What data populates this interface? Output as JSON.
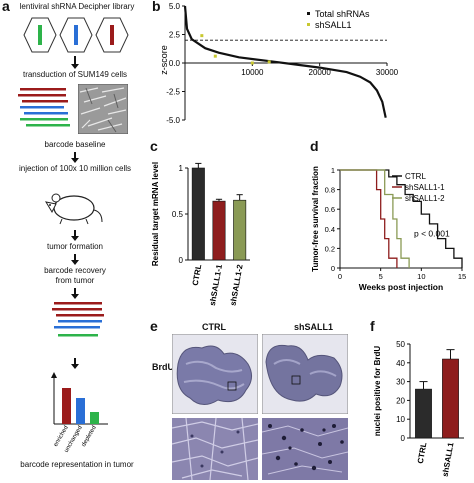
{
  "panel_labels": {
    "a": "a",
    "b": "b",
    "c": "c",
    "d": "d",
    "e": "e",
    "f": "f"
  },
  "panel_a": {
    "steps": [
      "lentiviral shRNA Decipher library",
      "transduction of SUM149 cells",
      "barcode baseline",
      "injection of 100x 10 million cells",
      "tumor formation",
      "barcode recovery",
      "from tumor",
      "barcode representation in tumor"
    ],
    "bar_labels": [
      "enriched",
      "unchanged",
      "depleted"
    ],
    "colors": {
      "green": "#2db34a",
      "blue": "#2a6fd6",
      "red": "#9b1b1b"
    }
  },
  "panel_b": {
    "ylabel": "z-score",
    "legend": [
      "Total shRNAs",
      "shSALL1"
    ]
  },
  "chart_data": [
    {
      "type": "line",
      "panel": "b",
      "ylabel": "z-score",
      "xlim": [
        0,
        30000
      ],
      "ylim": [
        -5.0,
        5.0
      ],
      "x_ticks": [
        10000,
        20000,
        30000
      ],
      "y_ticks": [
        -5.0,
        -2.5,
        0.0,
        2.5,
        5.0
      ],
      "threshold": 2.0,
      "series": [
        {
          "name": "Total shRNAs",
          "x": [
            0,
            300,
            1000,
            3000,
            5000,
            8000,
            12000,
            16000,
            20000,
            24000,
            26000,
            27500,
            28500,
            29300,
            29800
          ],
          "y": [
            5.0,
            3.0,
            2.1,
            1.3,
            0.9,
            0.5,
            0.2,
            -0.1,
            -0.4,
            -0.8,
            -1.2,
            -1.7,
            -2.4,
            -3.4,
            -4.8
          ]
        },
        {
          "name": "shSALL1",
          "x": [
            2500,
            4500,
            10000,
            12500
          ],
          "y": [
            2.4,
            0.6,
            0.0,
            0.1
          ]
        }
      ]
    },
    {
      "type": "bar",
      "panel": "c",
      "ylabel": "Residual target mRNA level",
      "categories": [
        "CTRL",
        "shSALL1-1",
        "shSALL1-2"
      ],
      "values": [
        1.0,
        0.64,
        0.65
      ],
      "errors": [
        0.05,
        0.02,
        0.06
      ],
      "ylim": [
        0,
        1.0
      ],
      "y_ticks": [
        0,
        0.5,
        1.0
      ],
      "colors": [
        "#2b2b2b",
        "#8e1d1d",
        "#8a9a55"
      ]
    },
    {
      "type": "line",
      "panel": "d",
      "xlabel": "Weeks post injection",
      "ylabel": "Tumor-free survival fraction",
      "xlim": [
        0,
        15
      ],
      "ylim": [
        0,
        1.0
      ],
      "x_ticks": [
        0,
        5,
        10,
        15
      ],
      "y_ticks": [
        0,
        0.2,
        0.4,
        0.6,
        0.8,
        1.0
      ],
      "annotation": "p < 0.001",
      "series": [
        {
          "name": "CTRL",
          "color": "#111111",
          "x": [
            0,
            6,
            6,
            7,
            7,
            8,
            8,
            9,
            9,
            10,
            10,
            11,
            11,
            12,
            12,
            13,
            13,
            14,
            14,
            15,
            15
          ],
          "y": [
            1,
            1,
            0.93,
            0.93,
            0.85,
            0.85,
            0.75,
            0.75,
            0.68,
            0.68,
            0.55,
            0.55,
            0.45,
            0.45,
            0.3,
            0.3,
            0.2,
            0.2,
            0.1,
            0.1,
            0
          ]
        },
        {
          "name": "shSALL1-1",
          "color": "#8e1d1d",
          "x": [
            0,
            4.5,
            4.5,
            5,
            5,
            5.5,
            5.5,
            6,
            6,
            7,
            7
          ],
          "y": [
            1,
            1,
            0.8,
            0.8,
            0.5,
            0.5,
            0.3,
            0.3,
            0.1,
            0.1,
            0
          ]
        },
        {
          "name": "shSALL1-2",
          "color": "#8a9a55",
          "x": [
            0,
            5.5,
            5.5,
            6.5,
            6.5,
            7,
            7,
            7.5,
            7.5,
            8.5,
            8.5
          ],
          "y": [
            1,
            1,
            0.75,
            0.75,
            0.5,
            0.5,
            0.3,
            0.3,
            0.1,
            0.1,
            0
          ]
        }
      ]
    },
    {
      "type": "bar",
      "panel": "f",
      "ylabel": "nuclei positive for BrdU",
      "categories": [
        "CTRL",
        "shSALL1"
      ],
      "values": [
        26,
        42
      ],
      "errors": [
        4,
        5
      ],
      "ylim": [
        0,
        50
      ],
      "y_ticks": [
        0,
        10,
        20,
        30,
        40,
        50
      ],
      "colors": [
        "#2b2b2b",
        "#8e1d1d"
      ]
    }
  ],
  "panel_e": {
    "row_label": "BrdU",
    "col_labels": [
      "CTRL",
      "shSALL1"
    ]
  }
}
